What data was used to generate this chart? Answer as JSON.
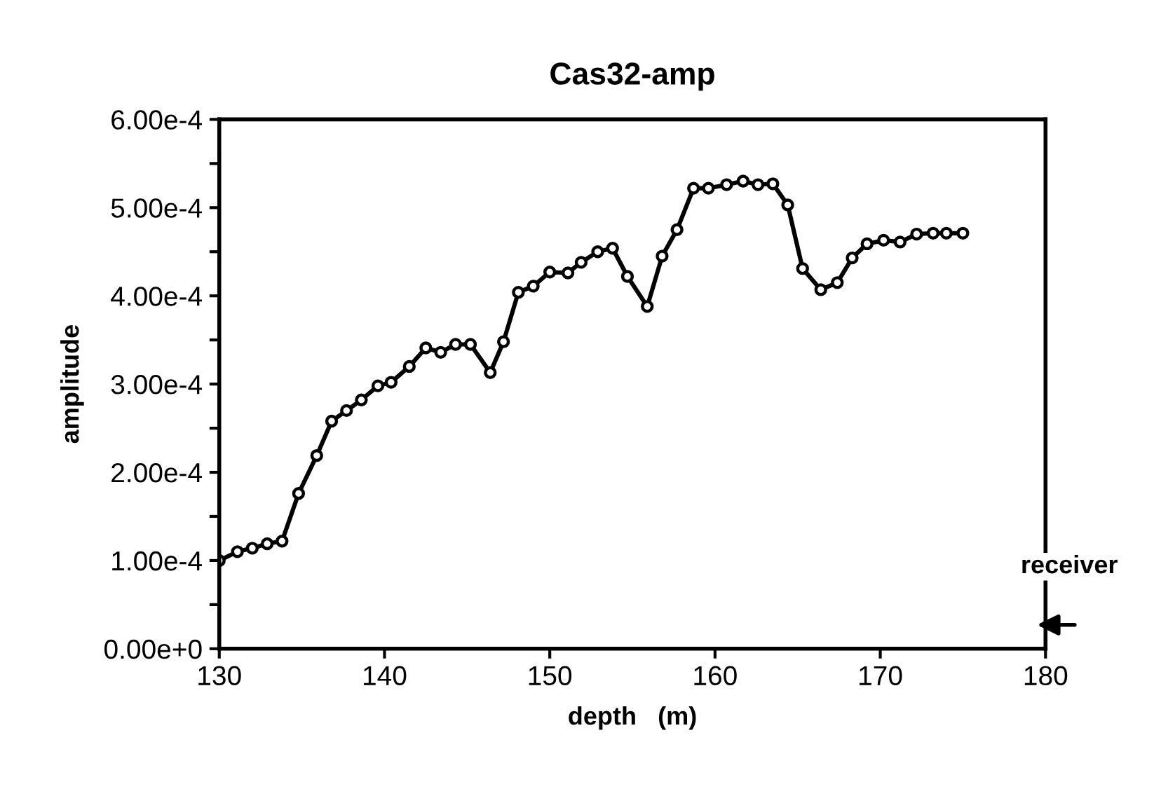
{
  "chart_data": {
    "type": "line",
    "title": "Cas32-amp",
    "xlabel": "depth   (m)",
    "ylabel": "amplitude",
    "annotations": [
      "receiver"
    ],
    "xlim": [
      130,
      180
    ],
    "xticks": [
      130,
      140,
      150,
      160,
      170,
      180
    ],
    "ylim": [
      0,
      0.0006
    ],
    "yticks": [
      {
        "value": 0,
        "label": "0.00e+0"
      },
      {
        "value": 5e-05,
        "label": null
      },
      {
        "value": 0.0001,
        "label": "1.00e-4"
      },
      {
        "value": 0.00015,
        "label": null
      },
      {
        "value": 0.0002,
        "label": "2.00e-4"
      },
      {
        "value": 0.00025,
        "label": null
      },
      {
        "value": 0.0003,
        "label": "3.00e-4"
      },
      {
        "value": 0.00035,
        "label": null
      },
      {
        "value": 0.0004,
        "label": "4.00e-4"
      },
      {
        "value": 0.00045,
        "label": null
      },
      {
        "value": 0.0005,
        "label": "5.00e-4"
      },
      {
        "value": 0.00055,
        "label": null
      },
      {
        "value": 0.0006,
        "label": "6.00e-4"
      }
    ],
    "grid": false,
    "marker": "circle",
    "line_style": "solid",
    "series": [
      {
        "color": "#000000",
        "x": [
          130.0,
          131.1,
          132.0,
          132.9,
          133.8,
          134.8,
          135.9,
          136.8,
          137.7,
          138.6,
          139.6,
          140.4,
          141.5,
          142.5,
          143.4,
          144.3,
          145.2,
          146.4,
          147.2,
          148.1,
          149.0,
          150.0,
          151.1,
          151.9,
          152.9,
          153.8,
          154.7,
          155.9,
          156.8,
          157.7,
          158.7,
          159.6,
          160.7,
          161.7,
          162.6,
          163.5,
          164.4,
          165.3,
          166.4,
          167.4,
          168.3,
          169.2,
          170.2,
          171.2,
          172.2,
          173.2,
          174.0,
          175.0
        ],
        "values": [
          0.0001,
          0.00011,
          0.000114,
          0.000119,
          0.000122,
          0.000176,
          0.000219,
          0.000258,
          0.00027,
          0.000282,
          0.000298,
          0.000302,
          0.00032,
          0.000341,
          0.000336,
          0.000345,
          0.000345,
          0.000313,
          0.000348,
          0.000404,
          0.000411,
          0.000427,
          0.000426,
          0.000438,
          0.00045,
          0.000454,
          0.000422,
          0.000388,
          0.000445,
          0.000475,
          0.000522,
          0.000522,
          0.000526,
          0.00053,
          0.000526,
          0.000527,
          0.000503,
          0.000431,
          0.000407,
          0.000415,
          0.000443,
          0.000459,
          0.000463,
          0.000461,
          0.00047,
          0.000471,
          0.000471,
          0.000471
        ]
      }
    ]
  }
}
